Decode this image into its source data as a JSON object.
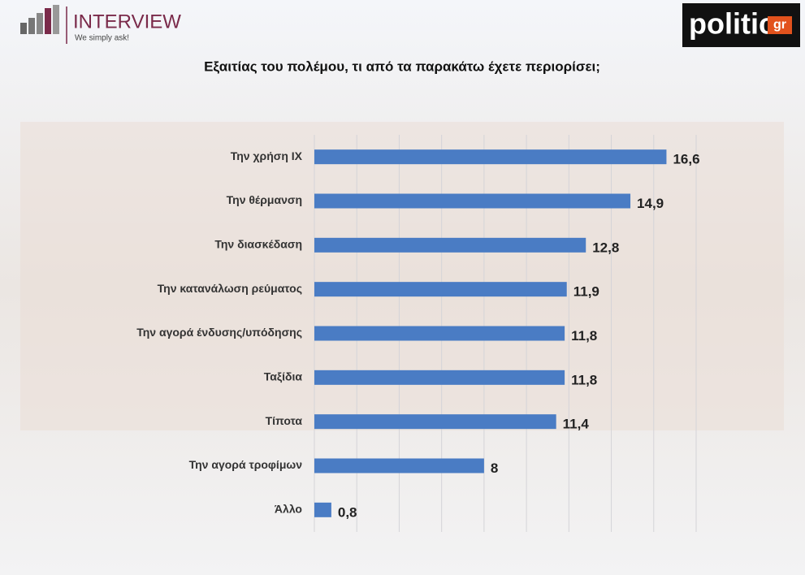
{
  "branding": {
    "left_name": "INTERVIEW",
    "left_tagline": "We simply ask!",
    "right_name": "politic",
    "right_suffix": "gr"
  },
  "chart_data": {
    "type": "hbar",
    "title": "Εξαιτίας του πολέμου, τι από τα παρακάτω έχετε περιορίσει;",
    "categories": [
      "Την χρήση ΙΧ",
      "Την θέρμανση",
      "Την διασκέδαση",
      "Την κατανάλωση ρεύματος",
      "Την αγορά ένδυσης/υπόδησης",
      "Ταξίδια",
      "Τίποτα",
      "Την αγορά τροφίμων",
      "Άλλο"
    ],
    "values": [
      16.6,
      14.9,
      12.8,
      11.9,
      11.8,
      11.8,
      11.4,
      8,
      0.8
    ],
    "value_labels": [
      "16,6",
      "14,9",
      "12,8",
      "11,9",
      "11,8",
      "11,8",
      "11,4",
      "8",
      "0,8"
    ],
    "color": "#4a7cc4",
    "xlim": [
      0,
      18
    ],
    "xticks": [
      0,
      2,
      4,
      6,
      8,
      10,
      12,
      14,
      16,
      18
    ],
    "grid": true
  }
}
